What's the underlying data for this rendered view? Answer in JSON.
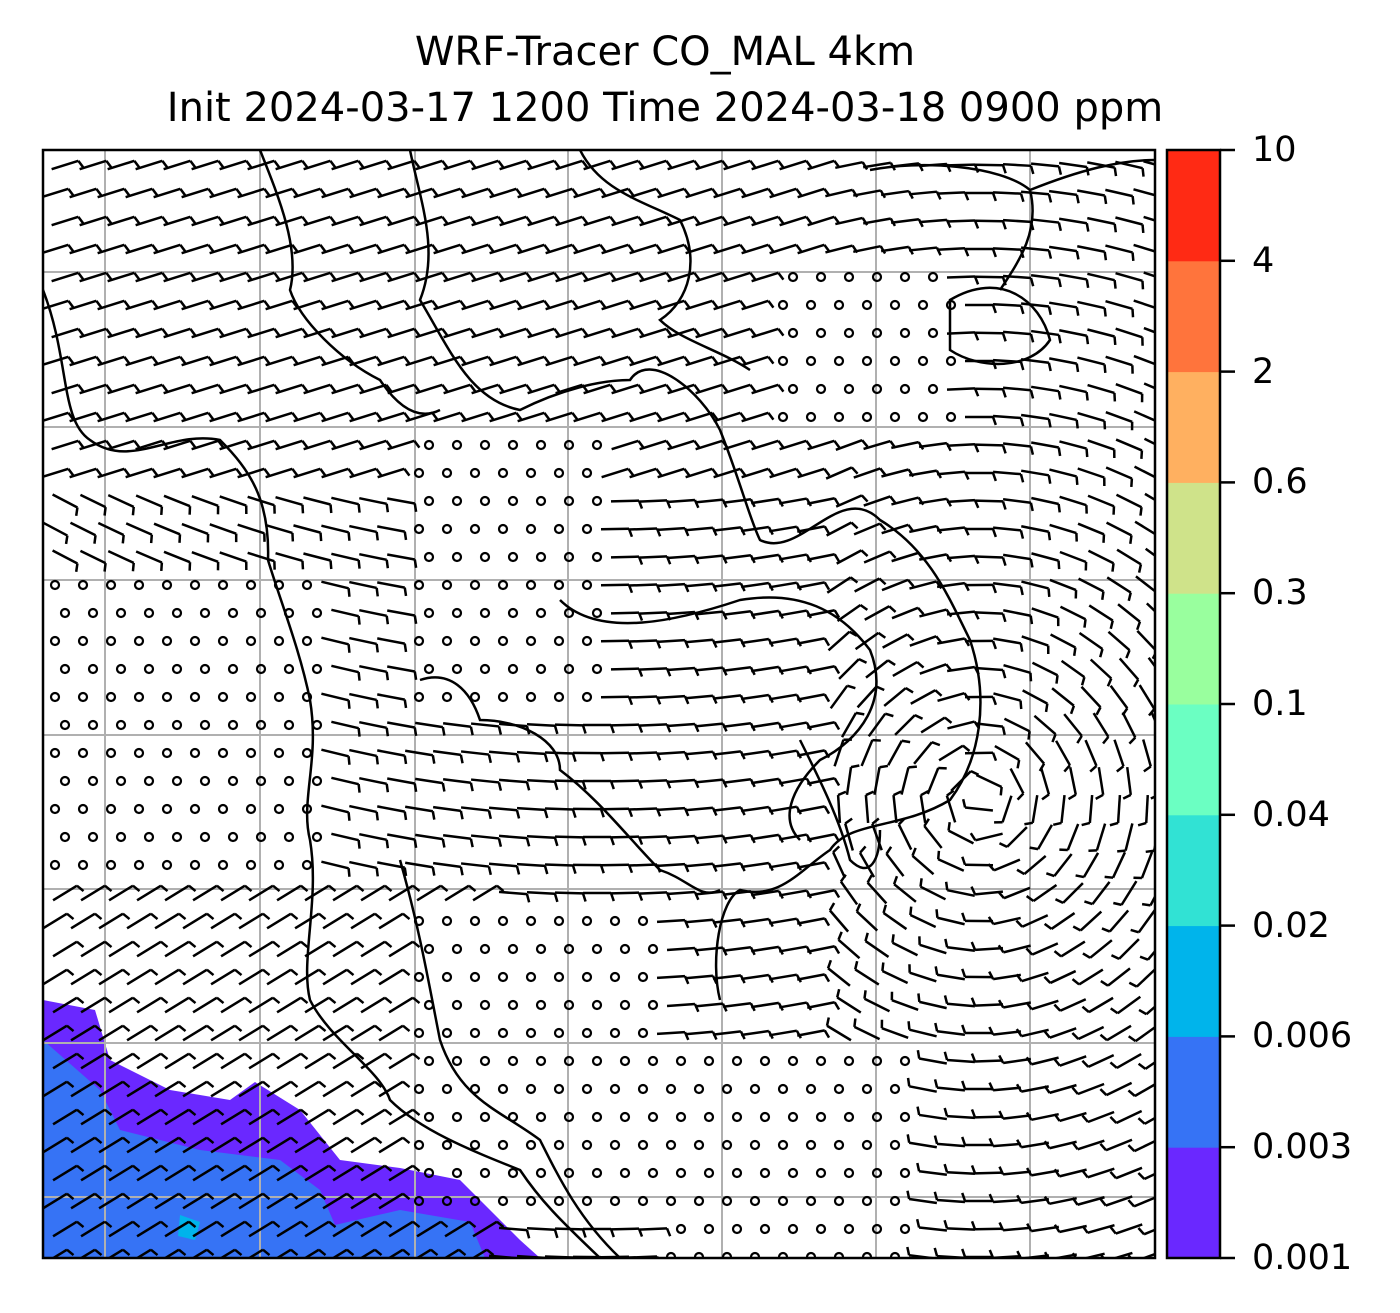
{
  "title": {
    "line1": "WRF-Tracer CO_MAL 4km",
    "line2": "Init 2024-03-17 1200 Time 2024-03-18 0900 ppm"
  },
  "colorbar": {
    "unit": "ppm",
    "ticks": [
      "0.001",
      "0.003",
      "0.006",
      "0.02",
      "0.04",
      "0.1",
      "0.3",
      "0.6",
      "2",
      "4",
      "10"
    ],
    "colors": [
      "#6a28ff",
      "#3673f5",
      "#00b4eb",
      "#31e2d4",
      "#6bffc2",
      "#99ff9e",
      "#cfe38a",
      "#ffb060",
      "#ff743c",
      "#ff2a14"
    ]
  },
  "map": {
    "grid_color": "#b0b0b0",
    "plume_colors": [
      "#6a28ff",
      "#3673f5",
      "#00b4eb"
    ]
  }
}
